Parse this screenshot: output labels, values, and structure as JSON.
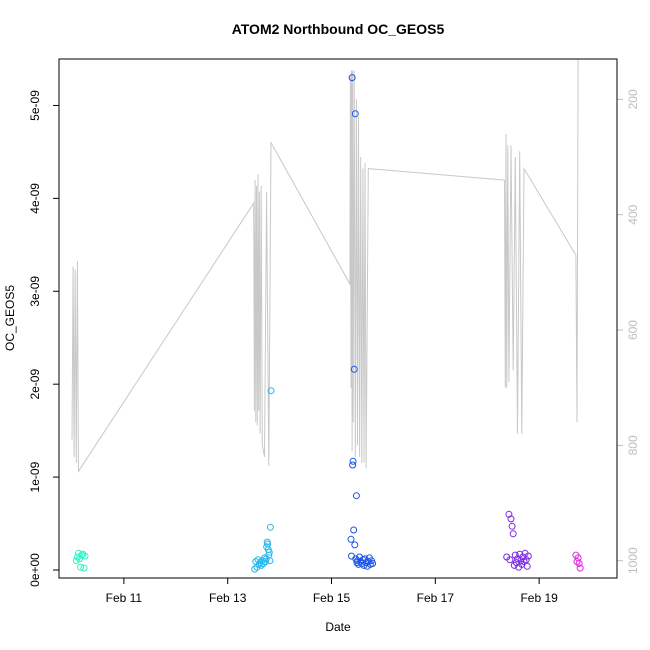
{
  "chart_data": {
    "type": "scatter",
    "title": "ATOM2 Northbound OC_GEOS5",
    "xlabel": "Date",
    "ylabel": "OC_GEOS5",
    "ylim": [
      0,
      5.5e-09
    ],
    "y_ticks": [
      0,
      1e-09,
      2e-09,
      3e-09,
      4e-09,
      5e-09
    ],
    "y_tick_labels": [
      "0e+00",
      "1e-09",
      "2e-09",
      "3e-09",
      "4e-09",
      "5e-09"
    ],
    "xlim": [
      "2017-02-09 18:00",
      "2017-02-20 12:00"
    ],
    "x_ticks": [
      "2017-02-11",
      "2017-02-13",
      "2017-02-15",
      "2017-02-17",
      "2017-02-19"
    ],
    "x_tick_labels": [
      "Feb 11",
      "Feb 13",
      "Feb 15",
      "Feb 17",
      "Feb 19"
    ],
    "right_axis": {
      "reversed": true,
      "ylim": [
        130,
        1030
      ],
      "ticks": [
        200,
        400,
        600,
        800,
        1000
      ],
      "tick_labels": [
        "200",
        "400",
        "600",
        "800",
        "1000"
      ],
      "color": "#bdbdbd"
    },
    "grid": false,
    "series": [
      {
        "color_hex": "#2ef2c2",
        "points": [
          [
            "2017-02-10 02:00",
            1e-10
          ],
          [
            "2017-02-10 02:30",
            1.4e-10
          ],
          [
            "2017-02-10 03:00",
            1.8e-10
          ],
          [
            "2017-02-10 03:30",
            1.2e-10
          ],
          [
            "2017-02-10 04:00",
            3e-11
          ],
          [
            "2017-02-10 04:30",
            1.6e-10
          ],
          [
            "2017-02-10 05:00",
            1.7e-10
          ],
          [
            "2017-02-10 05:30",
            2e-11
          ],
          [
            "2017-02-10 06:00",
            1.5e-10
          ]
        ]
      },
      {
        "color_hex": "#22b8f0",
        "points": [
          [
            "2017-02-13 12:30",
            1e-11
          ],
          [
            "2017-02-13 13:00",
            9e-11
          ],
          [
            "2017-02-13 13:30",
            3e-11
          ],
          [
            "2017-02-13 14:00",
            1.1e-10
          ],
          [
            "2017-02-13 14:30",
            6e-11
          ],
          [
            "2017-02-13 15:00",
            8e-11
          ],
          [
            "2017-02-13 15:30",
            5e-11
          ],
          [
            "2017-02-13 16:00",
            1e-10
          ],
          [
            "2017-02-13 16:30",
            7e-11
          ],
          [
            "2017-02-13 17:00",
            1.3e-10
          ],
          [
            "2017-02-13 17:30",
            9e-11
          ],
          [
            "2017-02-13 17:45",
            1.2e-10
          ],
          [
            "2017-02-13 18:00",
            2.5e-10
          ],
          [
            "2017-02-13 18:15",
            3e-10
          ],
          [
            "2017-02-13 18:30",
            2.8e-10
          ],
          [
            "2017-02-13 18:45",
            2.2e-10
          ],
          [
            "2017-02-13 19:00",
            1.6e-10
          ],
          [
            "2017-02-13 19:15",
            1.9e-10
          ],
          [
            "2017-02-13 19:30",
            1e-10
          ],
          [
            "2017-02-13 19:45",
            4.6e-10
          ],
          [
            "2017-02-13 20:00",
            1.93e-09
          ]
        ]
      },
      {
        "color_hex": "#1a55e8",
        "points": [
          [
            "2017-02-15 09:30",
            5.3e-09
          ],
          [
            "2017-02-15 09:45",
            1.13e-09
          ],
          [
            "2017-02-15 10:00",
            1.17e-09
          ],
          [
            "2017-02-15 10:15",
            4.3e-10
          ],
          [
            "2017-02-15 10:30",
            2.16e-09
          ],
          [
            "2017-02-15 11:00",
            4.91e-09
          ],
          [
            "2017-02-15 11:30",
            8e-10
          ],
          [
            "2017-02-15 09:00",
            3.3e-10
          ],
          [
            "2017-02-15 09:15",
            1.5e-10
          ],
          [
            "2017-02-15 10:45",
            2.7e-10
          ],
          [
            "2017-02-15 11:15",
            1.2e-10
          ],
          [
            "2017-02-15 11:45",
            8e-11
          ],
          [
            "2017-02-15 12:00",
            1e-10
          ],
          [
            "2017-02-15 12:30",
            6e-11
          ],
          [
            "2017-02-15 13:00",
            1.4e-10
          ],
          [
            "2017-02-15 13:30",
            9e-11
          ],
          [
            "2017-02-15 14:00",
            7e-11
          ],
          [
            "2017-02-15 14:30",
            1.1e-10
          ],
          [
            "2017-02-15 15:00",
            5e-11
          ],
          [
            "2017-02-15 15:30",
            1.2e-10
          ],
          [
            "2017-02-15 16:00",
            8e-11
          ],
          [
            "2017-02-15 16:30",
            4e-11
          ],
          [
            "2017-02-15 17:00",
            9e-11
          ],
          [
            "2017-02-15 17:30",
            1.3e-10
          ],
          [
            "2017-02-15 18:00",
            6e-11
          ],
          [
            "2017-02-15 18:30",
            1e-10
          ],
          [
            "2017-02-15 19:00",
            7e-11
          ]
        ]
      },
      {
        "color_hex": "#7a2ae6",
        "points": [
          [
            "2017-02-18 10:00",
            6e-10
          ],
          [
            "2017-02-18 11:00",
            5.5e-10
          ],
          [
            "2017-02-18 11:30",
            4.7e-10
          ],
          [
            "2017-02-18 12:00",
            3.9e-10
          ],
          [
            "2017-02-18 09:00",
            1.4e-10
          ],
          [
            "2017-02-18 10:30",
            1.1e-10
          ],
          [
            "2017-02-18 12:30",
            5e-11
          ],
          [
            "2017-02-18 13:00",
            1.6e-10
          ],
          [
            "2017-02-18 13:30",
            8e-11
          ],
          [
            "2017-02-18 14:00",
            1.2e-10
          ],
          [
            "2017-02-18 14:30",
            3e-11
          ],
          [
            "2017-02-18 15:00",
            1.7e-10
          ],
          [
            "2017-02-18 15:30",
            1e-10
          ],
          [
            "2017-02-18 16:00",
            6e-11
          ],
          [
            "2017-02-18 16:30",
            1.4e-10
          ],
          [
            "2017-02-18 17:00",
            9e-11
          ],
          [
            "2017-02-18 17:30",
            1.8e-10
          ],
          [
            "2017-02-18 18:00",
            1.1e-10
          ],
          [
            "2017-02-18 18:30",
            4e-11
          ],
          [
            "2017-02-18 19:00",
            1.5e-10
          ]
        ]
      },
      {
        "color_hex": "#e02ee0",
        "points": [
          [
            "2017-02-19 17:00",
            1.6e-10
          ],
          [
            "2017-02-19 17:30",
            9e-11
          ],
          [
            "2017-02-19 18:00",
            1.3e-10
          ],
          [
            "2017-02-19 18:30",
            7e-11
          ],
          [
            "2017-02-19 19:00",
            2e-11
          ]
        ]
      }
    ],
    "pressure_line": {
      "color_hex": "#c8c8c8",
      "points": [
        [
          "2017-02-10 00:00",
          790
        ],
        [
          "2017-02-10 00:30",
          490
        ],
        [
          "2017-02-10 01:00",
          820
        ],
        [
          "2017-02-10 01:30",
          495
        ],
        [
          "2017-02-10 02:00",
          830
        ],
        [
          "2017-02-10 02:30",
          480
        ],
        [
          "2017-02-10 03:00",
          845
        ],
        [
          "2017-02-13 12:00",
          380
        ],
        [
          "2017-02-13 12:20",
          740
        ],
        [
          "2017-02-13 12:40",
          340
        ],
        [
          "2017-02-13 13:00",
          760
        ],
        [
          "2017-02-13 13:20",
          350
        ],
        [
          "2017-02-13 13:40",
          765
        ],
        [
          "2017-02-13 14:00",
          330
        ],
        [
          "2017-02-13 14:20",
          740
        ],
        [
          "2017-02-13 14:40",
          360
        ],
        [
          "2017-02-13 15:00",
          780
        ],
        [
          "2017-02-13 15:30",
          350
        ],
        [
          "2017-02-13 16:00",
          800
        ],
        [
          "2017-02-13 17:00",
          820
        ],
        [
          "2017-02-13 18:00",
          360
        ],
        [
          "2017-02-13 19:00",
          835
        ],
        [
          "2017-02-13 20:00",
          275
        ],
        [
          "2017-02-15 08:30",
          520
        ],
        [
          "2017-02-15 08:45",
          160
        ],
        [
          "2017-02-15 09:00",
          700
        ],
        [
          "2017-02-15 09:15",
          150
        ],
        [
          "2017-02-15 09:30",
          810
        ],
        [
          "2017-02-15 09:45",
          150
        ],
        [
          "2017-02-15 10:00",
          760
        ],
        [
          "2017-02-15 10:30",
          150
        ],
        [
          "2017-02-15 11:00",
          820
        ],
        [
          "2017-02-15 11:30",
          200
        ],
        [
          "2017-02-15 12:00",
          800
        ],
        [
          "2017-02-15 12:30",
          230
        ],
        [
          "2017-02-15 13:00",
          820
        ],
        [
          "2017-02-15 13:30",
          300
        ],
        [
          "2017-02-15 14:00",
          830
        ],
        [
          "2017-02-15 14:30",
          320
        ],
        [
          "2017-02-15 15:00",
          830
        ],
        [
          "2017-02-15 15:30",
          310
        ],
        [
          "2017-02-15 16:00",
          840
        ],
        [
          "2017-02-15 17:00",
          320
        ],
        [
          "2017-02-18 08:00",
          340
        ],
        [
          "2017-02-18 08:20",
          700
        ],
        [
          "2017-02-18 08:40",
          260
        ],
        [
          "2017-02-18 09:00",
          700
        ],
        [
          "2017-02-18 09:30",
          280
        ],
        [
          "2017-02-18 10:00",
          690
        ],
        [
          "2017-02-18 11:00",
          280
        ],
        [
          "2017-02-18 12:00",
          670
        ],
        [
          "2017-02-18 13:00",
          300
        ],
        [
          "2017-02-18 14:00",
          780
        ],
        [
          "2017-02-18 15:00",
          290
        ],
        [
          "2017-02-18 16:00",
          780
        ],
        [
          "2017-02-18 17:00",
          320
        ],
        [
          "2017-02-19 17:00",
          470
        ],
        [
          "2017-02-19 17:30",
          760
        ],
        [
          "2017-02-19 18:00",
          130
        ]
      ]
    }
  }
}
